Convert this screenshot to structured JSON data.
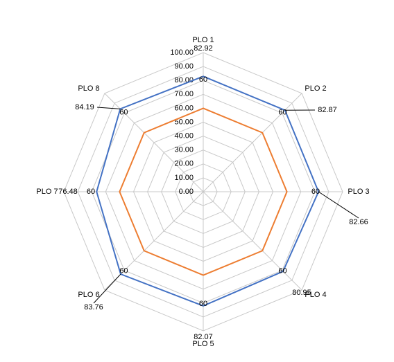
{
  "chart_data": {
    "type": "radar",
    "categories": [
      "PLO 1",
      "PLO 2",
      "PLO 3",
      "PLO 4",
      "PLO 5",
      "PLO 6",
      "PLO 7",
      "PLO 8"
    ],
    "series": [
      {
        "color": "#4472c4",
        "values": [
          82.92,
          82.87,
          82.66,
          80.95,
          82.07,
          83.76,
          76.48,
          84.19
        ]
      },
      {
        "color": "#ed7d31",
        "values": [
          60,
          60,
          60,
          60,
          60,
          60,
          60,
          60
        ]
      }
    ],
    "ylim": [
      0,
      100
    ],
    "yticks": [
      {
        "value": 0,
        "label": "0.00"
      },
      {
        "value": 10,
        "label": "10.00"
      },
      {
        "value": 20,
        "label": "20.00"
      },
      {
        "value": 30,
        "label": "30.00"
      },
      {
        "value": 40,
        "label": "40.00"
      },
      {
        "value": 50,
        "label": "50.00"
      },
      {
        "value": 60,
        "label": "60.00"
      },
      {
        "value": 70,
        "label": "70.00"
      },
      {
        "value": 80,
        "label": "80.00"
      },
      {
        "value": 90,
        "label": "90.00"
      },
      {
        "value": 100,
        "label": "100.00"
      }
    ],
    "grid": true
  }
}
